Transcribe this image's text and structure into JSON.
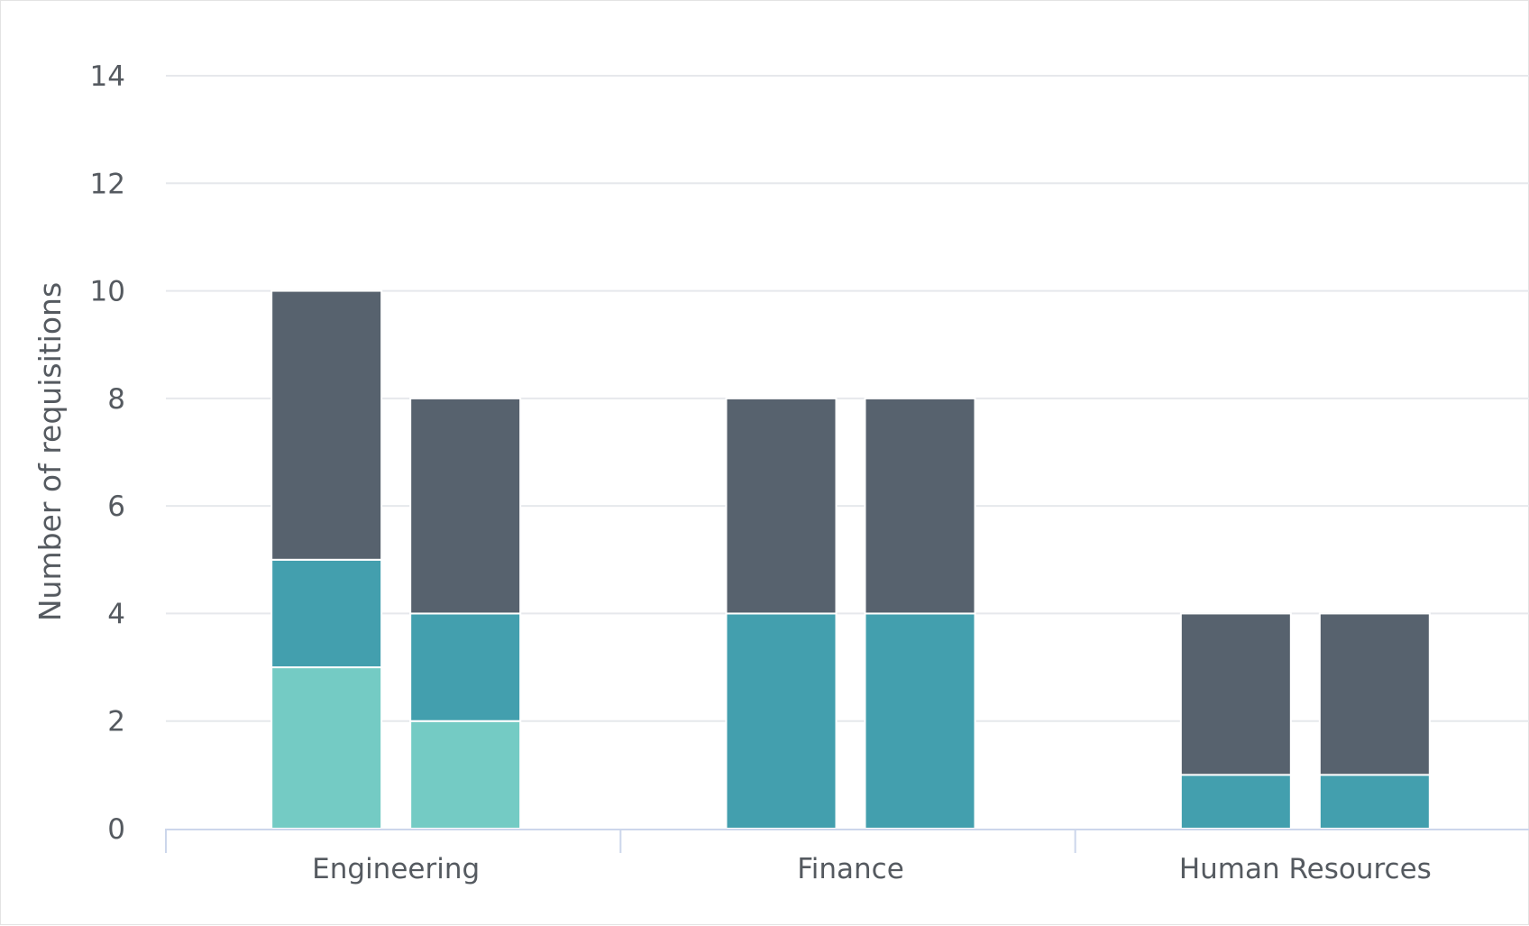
{
  "chart_data": {
    "type": "bar",
    "stacked": true,
    "grouped": true,
    "title": "",
    "xlabel": "",
    "ylabel": "Number of requisitions",
    "ylim": [
      0,
      14
    ],
    "yticks": [
      "0",
      "2",
      "4",
      "6",
      "8",
      "10",
      "12",
      "14"
    ],
    "grid": true,
    "legend": "none",
    "categories": [
      "Engineering",
      "Finance",
      "Human Resources"
    ],
    "groups_per_category": 2,
    "series": [
      {
        "color": "#74cbc4",
        "values": [
          [
            3,
            2
          ],
          [
            0,
            0
          ],
          [
            0,
            0
          ]
        ]
      },
      {
        "color": "#439fae",
        "values": [
          [
            2,
            2
          ],
          [
            4,
            4
          ],
          [
            1,
            1
          ]
        ]
      },
      {
        "color": "#57626e",
        "values": [
          [
            5,
            4
          ],
          [
            4,
            4
          ],
          [
            3,
            3
          ]
        ]
      }
    ],
    "colors": {
      "grid": "#e6e8ec",
      "axis": "#ccd6eb",
      "text": "#555a60",
      "separator": "#ffffff"
    }
  }
}
